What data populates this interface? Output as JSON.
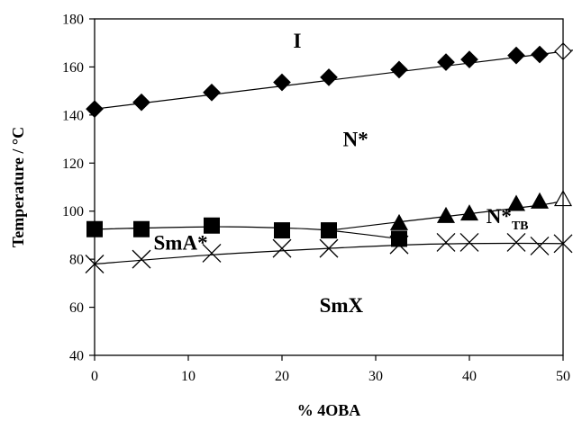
{
  "chart_data": {
    "type": "scatter",
    "title": "",
    "xlabel": "% 4OBA",
    "ylabel": "Temperature / °C",
    "xlim": [
      0,
      50
    ],
    "ylim": [
      40,
      180
    ],
    "x_ticks": [
      "0",
      "10",
      "20",
      "30",
      "40",
      "50"
    ],
    "y_ticks": [
      "40",
      "60",
      "80",
      "100",
      "120",
      "140",
      "160",
      "180"
    ],
    "grid": false,
    "legend": "none",
    "colors": {
      "marker": "#000000",
      "line": "#000000",
      "background": "#ffffff"
    },
    "series": [
      {
        "marker": "filled-diamond",
        "x": [
          0,
          5,
          12.5,
          20,
          25,
          32.5,
          37.5,
          40,
          45,
          47.5
        ],
        "y": [
          142.5,
          145.3,
          149.4,
          153.6,
          155.7,
          158.9,
          162.0,
          163.1,
          164.8,
          165.2
        ]
      },
      {
        "marker": "open-diamond",
        "x": [
          50
        ],
        "y": [
          166.5
        ]
      },
      {
        "marker": "filled-triangle",
        "x": [
          32.5,
          37.5,
          40,
          45,
          47.5
        ],
        "y": [
          95,
          98,
          99,
          103,
          104
        ]
      },
      {
        "marker": "open-triangle",
        "x": [
          50
        ],
        "y": [
          105
        ]
      },
      {
        "marker": "filled-square",
        "x": [
          0,
          5,
          12.5,
          20,
          25,
          32.5
        ],
        "y": [
          92.5,
          92.5,
          94,
          92,
          92,
          88.5
        ]
      },
      {
        "marker": "cross",
        "x": [
          0,
          5,
          12.5,
          20,
          25,
          32.5,
          37.5,
          40,
          45,
          47.5,
          50
        ],
        "y": [
          78,
          80,
          82.5,
          84.5,
          84.5,
          86,
          87,
          87,
          87,
          85.5,
          86.5
        ]
      }
    ],
    "curves": [
      {
        "x": [
          0,
          47.5,
          50
        ],
        "y": [
          142.5,
          165.2,
          166.5
        ]
      },
      {
        "x": [
          25,
          32.5,
          47.5,
          50
        ],
        "y": [
          92,
          95.5,
          102.5,
          105
        ]
      },
      {
        "x": [
          0,
          12.5,
          20,
          25,
          32.5
        ],
        "y": [
          92.5,
          93.5,
          93,
          92,
          88.5
        ]
      },
      {
        "x": [
          0,
          12.5,
          25,
          35,
          45,
          50
        ],
        "y": [
          78,
          81.8,
          84.5,
          86.2,
          86.6,
          86.5
        ]
      }
    ],
    "annotations": [
      {
        "id": "iso",
        "text": "I",
        "x": 21.2,
        "y": 168
      },
      {
        "id": "nstar",
        "text": "N*",
        "x": 26.5,
        "y": 127
      },
      {
        "id": "sma",
        "text": "SmA*",
        "x": 6.3,
        "y": 84
      },
      {
        "id": "ntb",
        "text": "N*",
        "sub": "TB",
        "x": 41.8,
        "y": 95
      },
      {
        "id": "smx",
        "text": "SmX",
        "x": 24,
        "y": 58
      }
    ]
  }
}
